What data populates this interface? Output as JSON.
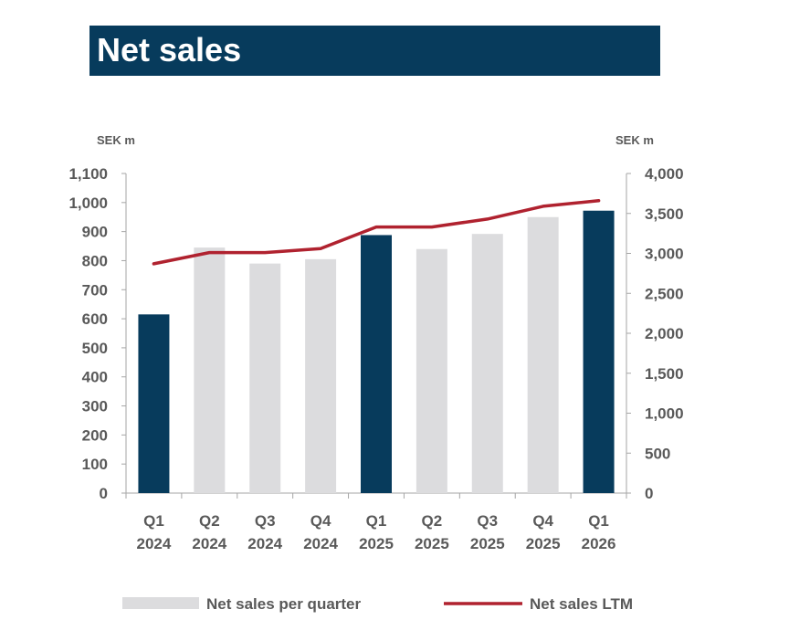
{
  "title": "Net sales",
  "colors": {
    "band": "#073B5C",
    "bar_highlight": "#073B5C",
    "bar_default": "#DCDCDE",
    "line": "#B0222F",
    "axis_text": "#595959",
    "axis_line": "#A6A6A6"
  },
  "chart_data": {
    "type": "bar",
    "categories": [
      [
        "Q1",
        "2024"
      ],
      [
        "Q2",
        "2024"
      ],
      [
        "Q3",
        "2024"
      ],
      [
        "Q4",
        "2024"
      ],
      [
        "Q1",
        "2025"
      ],
      [
        "Q2",
        "2025"
      ],
      [
        "Q3",
        "2025"
      ],
      [
        "Q4",
        "2025"
      ],
      [
        "Q1",
        "2026"
      ]
    ],
    "highlight_categories": [
      0,
      4,
      8
    ],
    "left_axis": {
      "unit_label": "SEK m",
      "ylim": [
        0,
        1100
      ],
      "ticks": [
        "0",
        "100",
        "200",
        "300",
        "400",
        "500",
        "600",
        "700",
        "800",
        "900",
        "1,000",
        "1,100"
      ]
    },
    "right_axis": {
      "unit_label": "SEK m",
      "ylim": [
        0,
        4000
      ],
      "ticks": [
        "0",
        "500",
        "1,000",
        "1,500",
        "2,000",
        "2,500",
        "3,000",
        "3,500",
        "4,000"
      ]
    },
    "series": [
      {
        "name": "Net sales per quarter",
        "type": "bar",
        "axis": "left",
        "values": [
          615,
          845,
          790,
          805,
          888,
          840,
          892,
          950,
          972
        ]
      },
      {
        "name": "Net sales LTM",
        "type": "line",
        "axis": "right",
        "values": [
          2870,
          3010,
          3010,
          3060,
          3330,
          3330,
          3430,
          3590,
          3660
        ]
      }
    ],
    "legend_position": "bottom",
    "grid": false
  }
}
